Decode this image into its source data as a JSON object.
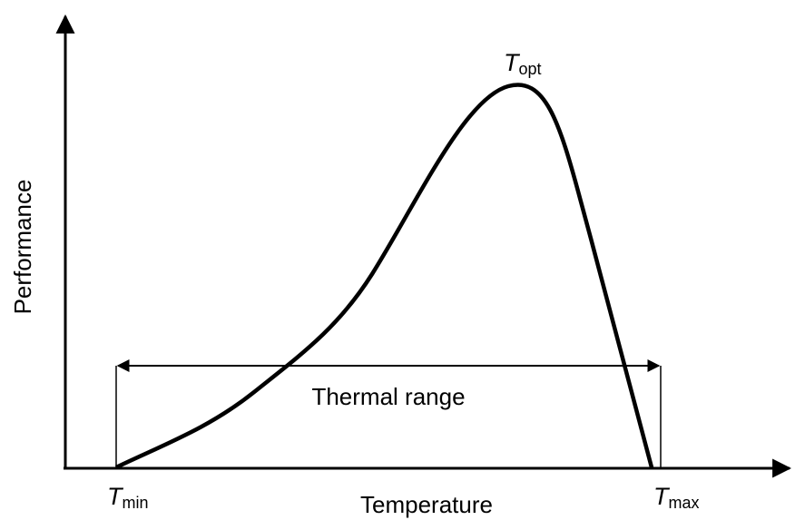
{
  "axes": {
    "x_label": "Temperature",
    "y_label": "Performance"
  },
  "labels": {
    "t_opt": {
      "symbol": "T",
      "subscript": "opt"
    },
    "t_min": {
      "symbol": "T",
      "subscript": "min"
    },
    "t_max": {
      "symbol": "T",
      "subscript": "max"
    }
  },
  "range_label": "Thermal range"
}
